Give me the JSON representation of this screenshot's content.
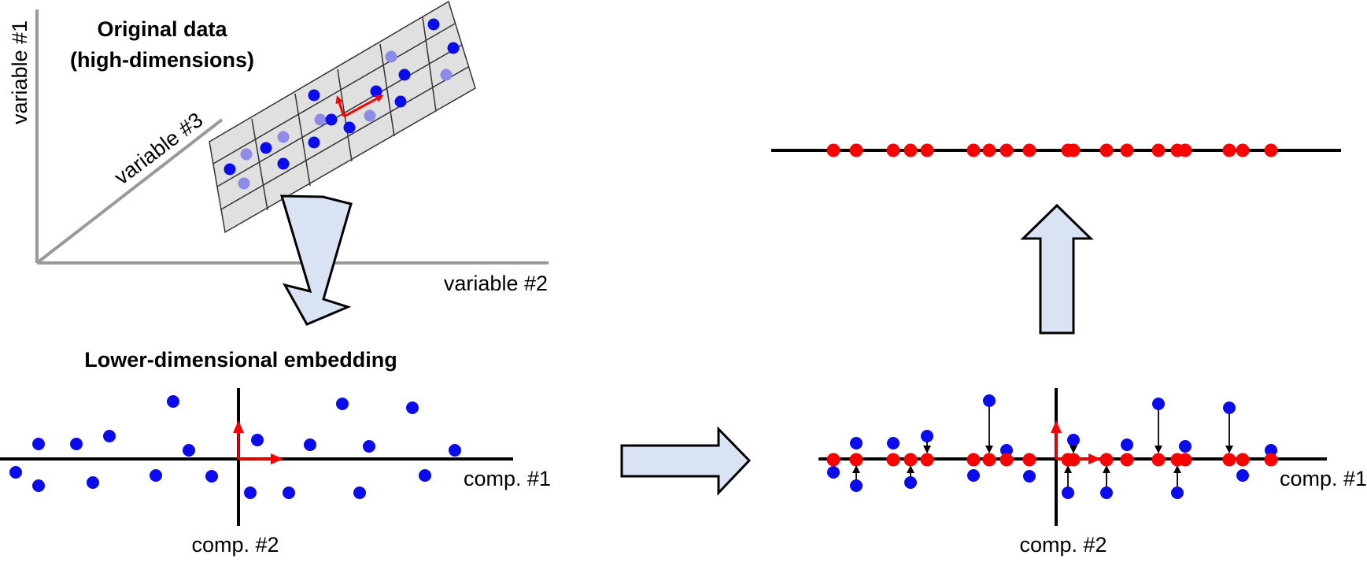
{
  "panel_original": {
    "title_line1": "Original data",
    "title_line2": "(high-dimensions)",
    "axis1": "variable #1",
    "axis2": "variable #2",
    "axis3": "variable #3"
  },
  "panel_embedding": {
    "title": "Lower-dimensional embedding",
    "axis1": "comp. #1",
    "axis2": "comp. #2"
  },
  "panel_projection": {
    "axis1": "comp. #1",
    "axis2": "comp. #2"
  },
  "colors": {
    "point_blue": "#0b0bf0",
    "point_faded": "#8c8ce6",
    "point_red": "#ff0000",
    "arrow_fill": "#d9e3f3",
    "axis_gray": "#9a9a9a",
    "grid_fill": "#e0e0e0"
  },
  "icons": [
    "big-arrow-down-icon",
    "big-arrow-right-icon",
    "big-arrow-up-icon"
  ]
}
